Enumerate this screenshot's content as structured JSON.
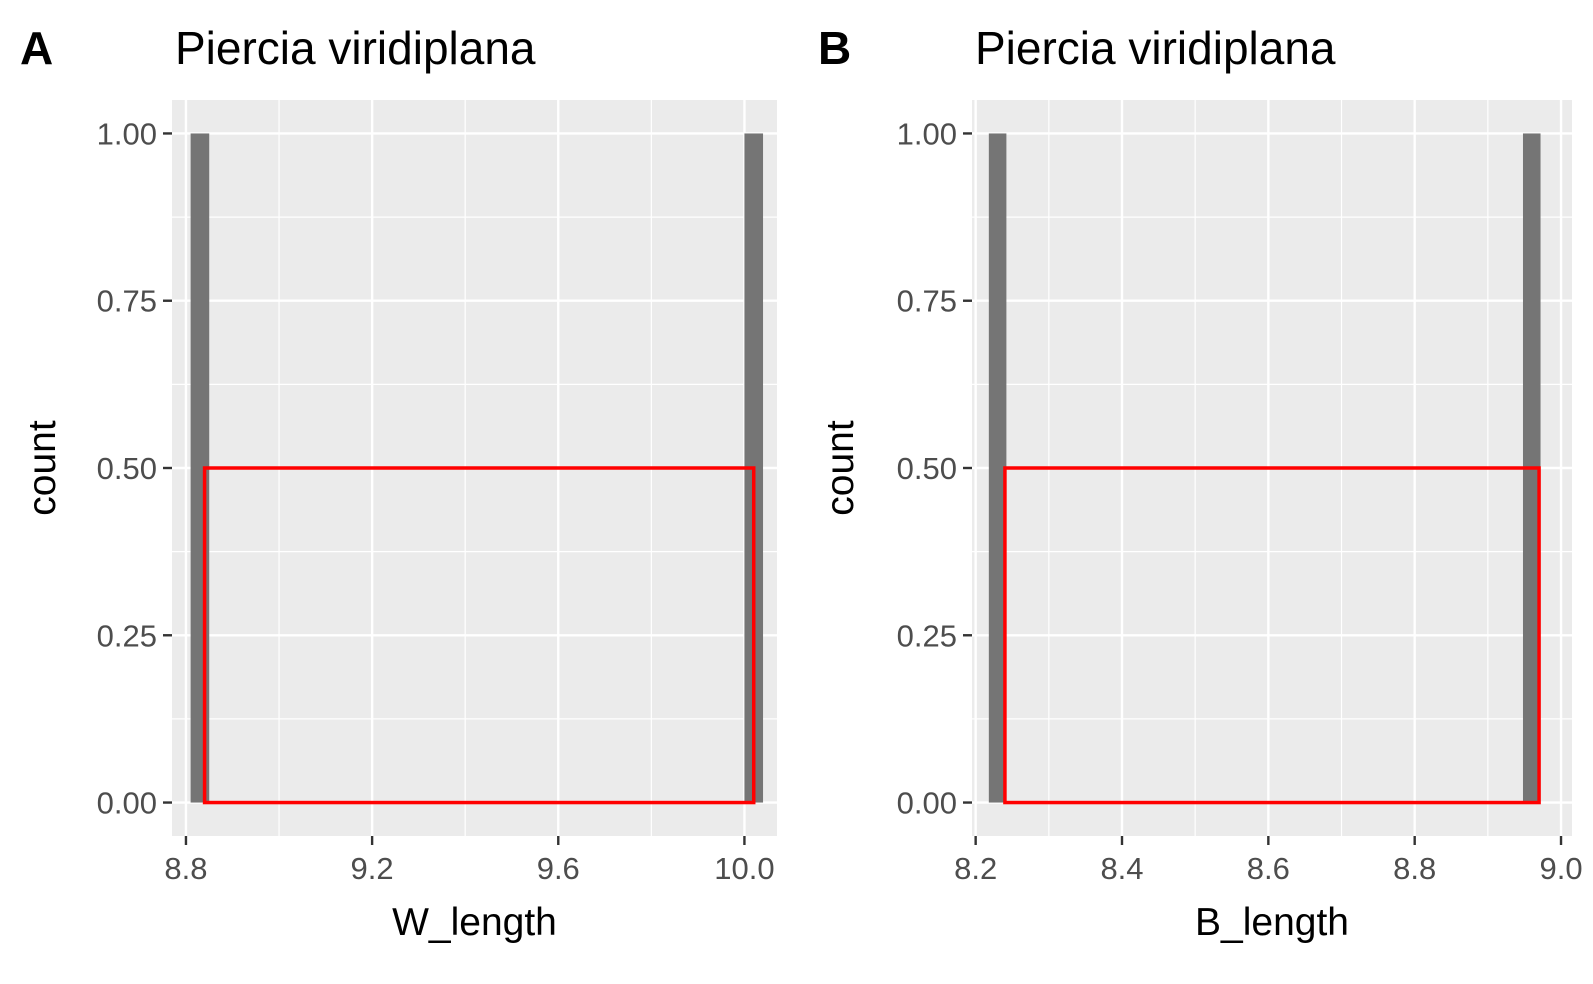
{
  "chart_data": [
    {
      "panel": "A",
      "type": "histogram",
      "title": "Piercia viridiplana",
      "xlabel": "W_length",
      "ylabel": "count",
      "xlim": [
        8.77,
        10.07
      ],
      "ylim": [
        -0.05,
        1.05
      ],
      "xticks": [
        8.8,
        9.2,
        9.6,
        10.0
      ],
      "xtick_labels": [
        "8.8",
        "9.2",
        "9.6",
        "10.0"
      ],
      "yticks": [
        0,
        0.25,
        0.5,
        0.75,
        1.0
      ],
      "ytick_labels": [
        "0.00",
        "0.25",
        "0.50",
        "0.75",
        "1.00"
      ],
      "bars": [
        {
          "x0": 8.81,
          "x1": 8.85,
          "count": 1
        },
        {
          "x0": 10.0,
          "x1": 10.04,
          "count": 1
        }
      ],
      "highlight_box": {
        "x0": 8.84,
        "x1": 10.02,
        "y0": 0,
        "y1": 0.5,
        "color": "#ff0000"
      },
      "bar_color": "#757575",
      "panel_bg": "#ebebeb",
      "grid": true
    },
    {
      "panel": "B",
      "type": "histogram",
      "title": "Piercia viridiplana",
      "xlabel": "B_length",
      "ylabel": "count",
      "xlim": [
        8.195,
        9.015
      ],
      "ylim": [
        -0.05,
        1.05
      ],
      "xticks": [
        8.2,
        8.4,
        8.6,
        8.8,
        9.0
      ],
      "xtick_labels": [
        "8.2",
        "8.4",
        "8.6",
        "8.8",
        "9.0"
      ],
      "yticks": [
        0,
        0.25,
        0.5,
        0.75,
        1.0
      ],
      "ytick_labels": [
        "0.00",
        "0.25",
        "0.50",
        "0.75",
        "1.00"
      ],
      "bars": [
        {
          "x0": 8.218,
          "x1": 8.242,
          "count": 1
        },
        {
          "x0": 8.948,
          "x1": 8.972,
          "count": 1
        }
      ],
      "highlight_box": {
        "x0": 8.24,
        "x1": 8.97,
        "y0": 0,
        "y1": 0.5,
        "color": "#ff0000"
      },
      "bar_color": "#757575",
      "panel_bg": "#ebebeb",
      "grid": true
    }
  ]
}
